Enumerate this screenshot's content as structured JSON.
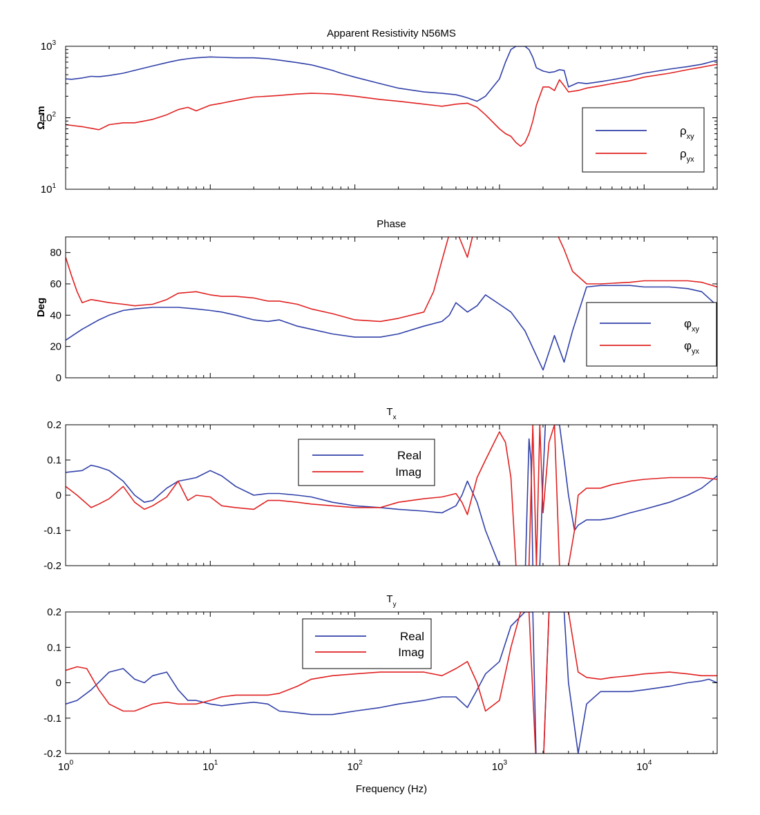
{
  "colors": {
    "xy": "#3040a8",
    "yx": "#e02020"
  },
  "chart_data": [
    {
      "id": "rho",
      "type": "line",
      "title": "Apparent Resistivity N56MS",
      "ylabel": "Ω−m",
      "xscale": "log",
      "yscale": "log",
      "xlim": [
        1,
        32000
      ],
      "ylim": [
        10,
        1000
      ],
      "yticks": [
        {
          "base": "10",
          "exp": "1",
          "v": 10
        },
        {
          "base": "10",
          "exp": "2",
          "v": 100
        },
        {
          "base": "10",
          "exp": "3",
          "v": 1000
        }
      ],
      "legend_position": "right",
      "series": [
        {
          "name": "ρ",
          "sub": "xy",
          "color_key": "xy",
          "x": [
            1,
            1.1,
            1.3,
            1.5,
            1.7,
            2,
            2.5,
            3,
            4,
            5,
            6,
            7,
            8,
            10,
            12,
            15,
            20,
            25,
            30,
            40,
            50,
            60,
            70,
            80,
            100,
            150,
            200,
            300,
            400,
            500,
            550,
            600,
            700,
            800,
            1000,
            1100,
            1200,
            1300,
            1400,
            1500,
            1600,
            1700,
            1800,
            2000,
            2200,
            2400,
            2600,
            2800,
            3000,
            3500,
            4000,
            5000,
            6000,
            8000,
            10000,
            15000,
            20000,
            25000,
            32000
          ],
          "y": [
            350,
            345,
            360,
            380,
            375,
            390,
            420,
            460,
            530,
            590,
            640,
            670,
            690,
            710,
            700,
            690,
            690,
            670,
            640,
            590,
            550,
            500,
            460,
            420,
            370,
            300,
            260,
            230,
            220,
            210,
            200,
            190,
            170,
            200,
            350,
            600,
            900,
            1000,
            1000,
            1000,
            900,
            700,
            500,
            450,
            430,
            440,
            470,
            460,
            270,
            310,
            300,
            320,
            340,
            380,
            420,
            480,
            520,
            560,
            640
          ]
        },
        {
          "name": "ρ",
          "sub": "yx",
          "color_key": "yx",
          "x": [
            1,
            1.3,
            1.7,
            2,
            2.5,
            3,
            3.5,
            4,
            5,
            6,
            7,
            8,
            10,
            12,
            15,
            20,
            25,
            30,
            40,
            50,
            60,
            70,
            80,
            100,
            150,
            200,
            300,
            400,
            450,
            500,
            600,
            700,
            800,
            1000,
            1100,
            1200,
            1300,
            1400,
            1500,
            1600,
            1700,
            1800,
            2000,
            2200,
            2400,
            2600,
            2800,
            3000,
            3500,
            4000,
            5000,
            6000,
            8000,
            10000,
            15000,
            20000,
            25000,
            32000
          ],
          "y": [
            80,
            75,
            68,
            80,
            85,
            85,
            90,
            95,
            110,
            130,
            140,
            125,
            150,
            160,
            175,
            195,
            200,
            205,
            215,
            220,
            218,
            215,
            210,
            200,
            180,
            170,
            155,
            145,
            150,
            155,
            160,
            140,
            110,
            70,
            60,
            55,
            45,
            40,
            45,
            60,
            90,
            150,
            270,
            270,
            240,
            340,
            280,
            230,
            240,
            260,
            280,
            300,
            330,
            370,
            420,
            470,
            510,
            560
          ]
        }
      ]
    },
    {
      "id": "phase",
      "type": "line",
      "title": "Phase",
      "ylabel": "Deg",
      "xscale": "log",
      "yscale": "linear",
      "xlim": [
        1,
        32000
      ],
      "ylim": [
        0,
        90
      ],
      "yticks": [
        {
          "label": "0",
          "v": 0
        },
        {
          "label": "20",
          "v": 20
        },
        {
          "label": "40",
          "v": 40
        },
        {
          "label": "60",
          "v": 60
        },
        {
          "label": "80",
          "v": 80
        }
      ],
      "legend_position": "right",
      "series": [
        {
          "name": "φ",
          "sub": "xy",
          "color_key": "xy",
          "x": [
            1,
            1.3,
            1.7,
            2,
            2.5,
            3,
            4,
            5,
            6,
            8,
            10,
            12,
            15,
            20,
            25,
            30,
            40,
            50,
            70,
            100,
            150,
            200,
            300,
            400,
            450,
            500,
            600,
            700,
            800,
            1000,
            1200,
            1500,
            2000,
            2400,
            2800,
            3200,
            4000,
            5000,
            6000,
            8000,
            10000,
            15000,
            20000,
            25000,
            32000
          ],
          "y": [
            24,
            31,
            37,
            40,
            43,
            44,
            45,
            45,
            45,
            44,
            43,
            42,
            40,
            37,
            36,
            37,
            33,
            31,
            28,
            26,
            26,
            28,
            33,
            36,
            40,
            48,
            42,
            46,
            53,
            47,
            42,
            30,
            5,
            27,
            10,
            30,
            58,
            59,
            59,
            59,
            58,
            58,
            57,
            55,
            46
          ]
        },
        {
          "name": "φ",
          "sub": "yx",
          "color_key": "yx",
          "x": [
            1,
            1.1,
            1.2,
            1.3,
            1.5,
            2,
            2.5,
            3,
            4,
            5,
            6,
            8,
            10,
            12,
            15,
            20,
            25,
            30,
            40,
            50,
            70,
            100,
            150,
            200,
            300,
            350,
            400,
            450,
            500,
            600,
            650,
            700,
            800,
            1000,
            1500,
            2000,
            2500,
            2800,
            3200,
            4000,
            5000,
            8000,
            10000,
            15000,
            20000,
            25000,
            32000
          ],
          "y": [
            77,
            65,
            55,
            48,
            50,
            48,
            47,
            46,
            47,
            50,
            54,
            55,
            53,
            52,
            52,
            51,
            49,
            49,
            47,
            44,
            41,
            37,
            36,
            38,
            42,
            55,
            75,
            92,
            95,
            77,
            90,
            95,
            95,
            95,
            95,
            95,
            92,
            82,
            68,
            60,
            60,
            61,
            62,
            62,
            62,
            61,
            58
          ]
        }
      ]
    },
    {
      "id": "tx",
      "type": "line",
      "title": "T",
      "title_sub": "x",
      "ylabel": "",
      "xscale": "log",
      "yscale": "linear",
      "xlim": [
        1,
        32000
      ],
      "ylim": [
        -0.2,
        0.2
      ],
      "yticks": [
        {
          "label": "-0.2",
          "v": -0.2
        },
        {
          "label": "-0.1",
          "v": -0.1
        },
        {
          "label": "0",
          "v": 0
        },
        {
          "label": "0.1",
          "v": 0.1
        },
        {
          "label": "0.2",
          "v": 0.2
        }
      ],
      "legend_position": "upper-center",
      "series": [
        {
          "name": "Real",
          "color_key": "xy",
          "x": [
            1,
            1.3,
            1.5,
            1.7,
            2,
            2.5,
            3,
            3.5,
            4,
            5,
            6,
            7,
            8,
            10,
            12,
            15,
            20,
            25,
            30,
            40,
            50,
            70,
            100,
            150,
            200,
            300,
            400,
            500,
            550,
            600,
            700,
            800,
            1000,
            1200,
            1400,
            1500,
            1600,
            1650,
            1700,
            1800,
            1900,
            2000,
            2100,
            2200,
            2400,
            2600,
            2800,
            3000,
            3300,
            3500,
            4000,
            5000,
            6000,
            8000,
            10000,
            15000,
            20000,
            25000,
            32000
          ],
          "y": [
            0.065,
            0.07,
            0.085,
            0.08,
            0.07,
            0.04,
            0,
            -0.02,
            -0.015,
            0.02,
            0.04,
            0.045,
            0.05,
            0.07,
            0.055,
            0.025,
            0,
            0.005,
            0.005,
            0,
            -0.005,
            -0.02,
            -0.03,
            -0.035,
            -0.04,
            -0.045,
            -0.05,
            -0.03,
            0,
            0.04,
            -0.02,
            -0.1,
            -0.2,
            -0.3,
            -0.3,
            -0.25,
            0.16,
            0.1,
            -0.2,
            -0.3,
            -0.2,
            0.05,
            0.25,
            0.3,
            0.2,
            0.2,
            0.1,
            0,
            -0.1,
            -0.085,
            -0.07,
            -0.07,
            -0.065,
            -0.05,
            -0.04,
            -0.02,
            0,
            0.02,
            0.055
          ]
        },
        {
          "name": "Imag",
          "color_key": "yx",
          "x": [
            1,
            1.2,
            1.5,
            1.7,
            2,
            2.5,
            3,
            3.5,
            4,
            5,
            6,
            7,
            8,
            10,
            12,
            15,
            20,
            25,
            30,
            40,
            50,
            70,
            100,
            150,
            200,
            300,
            400,
            450,
            500,
            550,
            600,
            700,
            800,
            1000,
            1100,
            1200,
            1300,
            1400,
            1500,
            1600,
            1700,
            1800,
            1900,
            2000,
            2200,
            2400,
            2600,
            2800,
            3000,
            3300,
            3500,
            4000,
            5000,
            6000,
            8000,
            10000,
            15000,
            20000,
            25000,
            32000
          ],
          "y": [
            0.025,
            0,
            -0.035,
            -0.025,
            -0.01,
            0.025,
            -0.02,
            -0.04,
            -0.03,
            -0.005,
            0.04,
            -0.015,
            0,
            -0.005,
            -0.03,
            -0.035,
            -0.04,
            -0.015,
            -0.015,
            -0.02,
            -0.025,
            -0.03,
            -0.035,
            -0.035,
            -0.02,
            -0.01,
            -0.005,
            0,
            0.005,
            -0.02,
            -0.055,
            0.05,
            0.1,
            0.18,
            0.15,
            0.05,
            -0.2,
            -0.3,
            -0.3,
            -0.2,
            0.2,
            -0.2,
            0.2,
            -0.05,
            0.15,
            0.2,
            -0.2,
            -0.3,
            -0.2,
            -0.1,
            0,
            0.02,
            0.02,
            0.03,
            0.04,
            0.045,
            0.05,
            0.05,
            0.05,
            0.045
          ]
        }
      ]
    },
    {
      "id": "ty",
      "type": "line",
      "title": "T",
      "title_sub": "y",
      "ylabel": "",
      "xlabel": "Frequency (Hz)",
      "xscale": "log",
      "yscale": "linear",
      "xlim": [
        1,
        32000
      ],
      "ylim": [
        -0.2,
        0.2
      ],
      "yticks": [
        {
          "label": "-0.2",
          "v": -0.2
        },
        {
          "label": "-0.1",
          "v": -0.1
        },
        {
          "label": "0",
          "v": 0
        },
        {
          "label": "0.1",
          "v": 0.1
        },
        {
          "label": "0.2",
          "v": 0.2
        }
      ],
      "xticks": [
        {
          "base": "10",
          "exp": "0",
          "v": 1
        },
        {
          "base": "10",
          "exp": "1",
          "v": 10
        },
        {
          "base": "10",
          "exp": "2",
          "v": 100
        },
        {
          "base": "10",
          "exp": "3",
          "v": 1000
        },
        {
          "base": "10",
          "exp": "4",
          "v": 10000
        }
      ],
      "legend_position": "upper-center",
      "series": [
        {
          "name": "Real",
          "color_key": "xy",
          "x": [
            1,
            1.2,
            1.5,
            2,
            2.5,
            3,
            3.5,
            4,
            5,
            6,
            7,
            8,
            10,
            12,
            15,
            20,
            25,
            30,
            40,
            50,
            70,
            100,
            150,
            200,
            300,
            400,
            500,
            600,
            700,
            800,
            1000,
            1200,
            1500,
            1700,
            1800,
            2000,
            2200,
            2400,
            2600,
            2800,
            3000,
            3500,
            4000,
            5000,
            6000,
            8000,
            10000,
            15000,
            20000,
            25000,
            28000,
            32000
          ],
          "y": [
            -0.06,
            -0.05,
            -0.02,
            0.03,
            0.04,
            0.01,
            0,
            0.02,
            0.03,
            -0.02,
            -0.05,
            -0.05,
            -0.06,
            -0.065,
            -0.06,
            -0.055,
            -0.06,
            -0.08,
            -0.085,
            -0.09,
            -0.09,
            -0.08,
            -0.07,
            -0.06,
            -0.05,
            -0.04,
            -0.04,
            -0.07,
            -0.02,
            0.025,
            0.06,
            0.16,
            0.2,
            0.2,
            -0.25,
            -0.25,
            0.2,
            0.2,
            0.2,
            0.2,
            0,
            -0.2,
            -0.06,
            -0.025,
            -0.025,
            -0.025,
            -0.02,
            -0.01,
            0,
            0.005,
            0.01,
            0
          ]
        },
        {
          "name": "Imag",
          "color_key": "yx",
          "x": [
            1,
            1.2,
            1.4,
            1.7,
            2,
            2.5,
            3,
            4,
            5,
            6,
            8,
            10,
            12,
            15,
            20,
            25,
            30,
            40,
            50,
            70,
            100,
            150,
            200,
            300,
            400,
            500,
            600,
            700,
            800,
            1000,
            1200,
            1400,
            1600,
            1800,
            2000,
            2200,
            2500,
            2800,
            3000,
            3500,
            4000,
            5000,
            6000,
            8000,
            10000,
            15000,
            20000,
            25000,
            32000
          ],
          "y": [
            0.035,
            0.045,
            0.04,
            -0.02,
            -0.06,
            -0.08,
            -0.08,
            -0.06,
            -0.055,
            -0.06,
            -0.06,
            -0.05,
            -0.04,
            -0.035,
            -0.035,
            -0.035,
            -0.03,
            -0.01,
            0.01,
            0.02,
            0.025,
            0.03,
            0.03,
            0.03,
            0.02,
            0.04,
            0.06,
            0,
            -0.08,
            -0.05,
            0.1,
            0.2,
            0.2,
            -0.25,
            -0.25,
            0.2,
            0.25,
            0.2,
            0.2,
            0.03,
            0.015,
            0.01,
            0.015,
            0.02,
            0.025,
            0.03,
            0.025,
            0.02,
            0.02
          ]
        }
      ]
    }
  ]
}
